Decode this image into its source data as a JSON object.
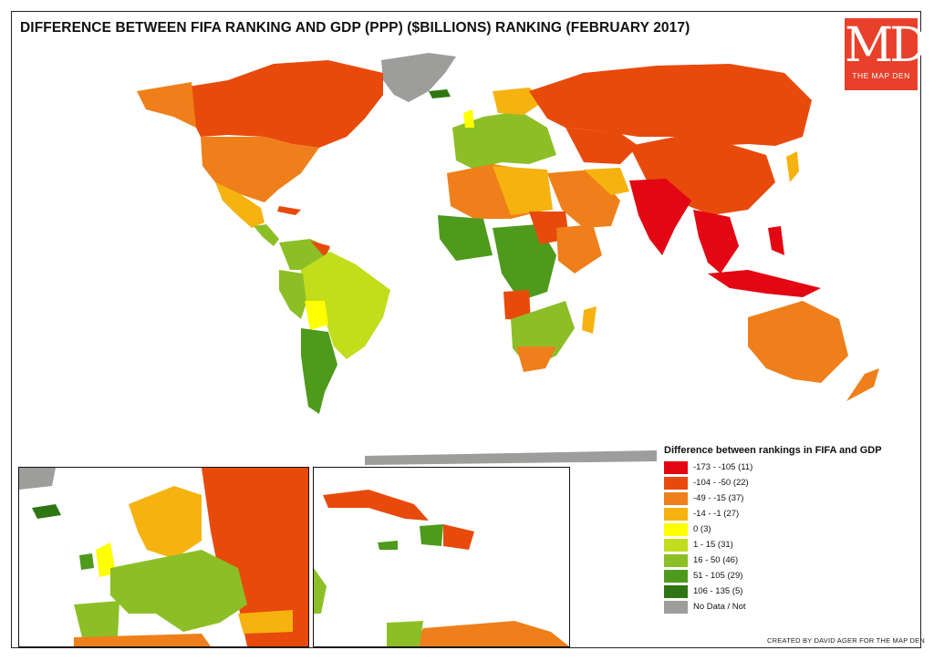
{
  "title": "DIFFERENCE BETWEEN FIFA RANKING AND GDP (PPP) ($BILLIONS) RANKING (FEBRUARY 2017)",
  "logo": {
    "text": "MD",
    "subtitle": "THE MAP DEN"
  },
  "legend": {
    "title": "Difference between rankings in FIFA and GDP",
    "items": [
      {
        "label": "-173 - -105 (11)",
        "color": "#e30613"
      },
      {
        "label": "-104 - -50 (22)",
        "color": "#e84a0c"
      },
      {
        "label": "-49 - -15 (37)",
        "color": "#ef7f1a"
      },
      {
        "label": "-14 - -1 (27)",
        "color": "#f6b20f"
      },
      {
        "label": "0 (3)",
        "color": "#ffff00"
      },
      {
        "label": "1 - 15 (31)",
        "color": "#c2dd1c"
      },
      {
        "label": "16 - 50 (46)",
        "color": "#8cbf26"
      },
      {
        "label": "51 - 105 (29)",
        "color": "#4e9a1c"
      },
      {
        "label": "106 - 135 (5)",
        "color": "#2e7613"
      },
      {
        "label": "No Data / Not",
        "color": "#9d9d9c"
      }
    ]
  },
  "credit": "CREATED BY DAVID AGER FOR THE MAP DEN"
}
